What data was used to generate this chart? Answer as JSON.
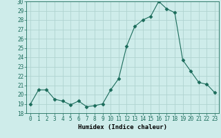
{
  "xlabel": "Humidex (Indice chaleur)",
  "ylabel": "",
  "x": [
    0,
    1,
    2,
    3,
    4,
    5,
    6,
    7,
    8,
    9,
    10,
    11,
    12,
    13,
    14,
    15,
    16,
    17,
    18,
    19,
    20,
    21,
    22,
    23
  ],
  "y": [
    19,
    20.5,
    20.5,
    19.5,
    19.3,
    18.9,
    19.3,
    18.7,
    18.8,
    19.0,
    20.5,
    21.7,
    25.2,
    27.3,
    28.0,
    28.4,
    30.0,
    29.2,
    28.8,
    23.7,
    22.5,
    21.3,
    21.1,
    20.2
  ],
  "line_color": "#1a6b5a",
  "marker": "D",
  "marker_size": 2.5,
  "bg_color": "#ceecea",
  "grid_color": "#b0d4d0",
  "ylim": [
    18,
    30
  ],
  "yticks": [
    18,
    19,
    20,
    21,
    22,
    23,
    24,
    25,
    26,
    27,
    28,
    29,
    30
  ],
  "xticks": [
    0,
    1,
    2,
    3,
    4,
    5,
    6,
    7,
    8,
    9,
    10,
    11,
    12,
    13,
    14,
    15,
    16,
    17,
    18,
    19,
    20,
    21,
    22,
    23
  ],
  "label_fontsize": 6.5,
  "tick_fontsize": 5.5
}
